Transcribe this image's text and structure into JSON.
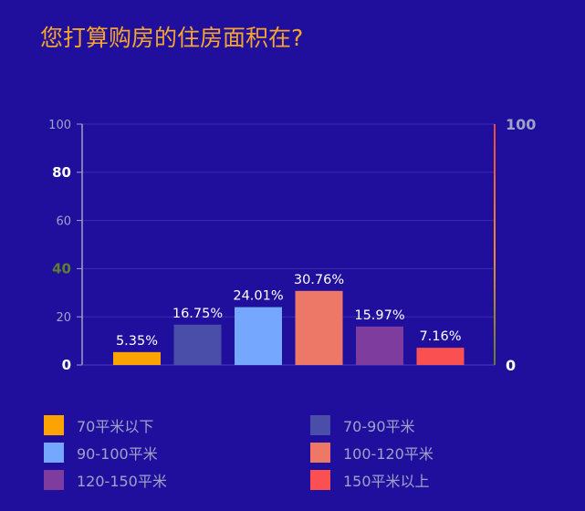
{
  "title": "您打算购房的住房面积在?",
  "chart_data": {
    "type": "bar",
    "categories": [
      "70平米以下",
      "70-90平米",
      "90-100平米",
      "100-120平米",
      "120-150平米",
      "150平米以上"
    ],
    "values": [
      5.35,
      16.75,
      24.01,
      30.76,
      15.97,
      7.16
    ],
    "value_labels": [
      "5.35%",
      "16.75%",
      "24.01%",
      "30.76%",
      "15.97%",
      "7.16%"
    ],
    "colors": [
      "#fba302",
      "#4a4ea9",
      "#75a7ff",
      "#ed7867",
      "#7e3c9f",
      "#fb5051"
    ],
    "ylim": [
      0,
      100
    ],
    "left_ticks": [
      "0",
      "20",
      "40",
      "60",
      "80",
      "100"
    ],
    "left_tick_colors": [
      "#ffffff",
      "#9fa2c8",
      "#5f7f2f",
      "#9fa2c8",
      "#ffffff",
      "#9fa2c8"
    ],
    "right_ticks": [
      "0",
      "100"
    ],
    "grid": true,
    "legend_position": "bottom"
  }
}
